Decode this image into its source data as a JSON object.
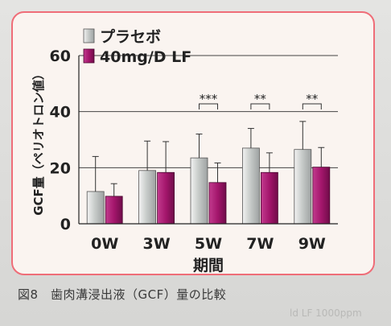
{
  "chart_data": {
    "type": "bar",
    "title": "",
    "xlabel": "期間",
    "ylabel": "GCF量（ペリオトロン値）",
    "ylim": [
      0,
      60
    ],
    "yticks": [
      0,
      20,
      40,
      60
    ],
    "grid": true,
    "legend_position": "top-left",
    "categories": [
      "0W",
      "3W",
      "5W",
      "7W",
      "9W"
    ],
    "series": [
      {
        "name": "プラセボ",
        "color": "#c8ccca",
        "values": [
          11.5,
          19,
          23.5,
          27,
          26.5
        ],
        "errors": [
          12.5,
          10.5,
          8.5,
          7,
          10
        ]
      },
      {
        "name": "40mg/D LF",
        "color": "#a4166c",
        "values": [
          9.8,
          18.3,
          14.7,
          18.3,
          20.2
        ],
        "errors": [
          4.5,
          11,
          7,
          7,
          7
        ]
      }
    ],
    "annotations": [
      {
        "category": "5W",
        "text": "***"
      },
      {
        "category": "7W",
        "text": "**"
      },
      {
        "category": "9W",
        "text": "**"
      }
    ]
  },
  "caption": "図8　歯肉溝浸出液（GCF）量の比較",
  "background_text": "ld LF 1000ppm"
}
